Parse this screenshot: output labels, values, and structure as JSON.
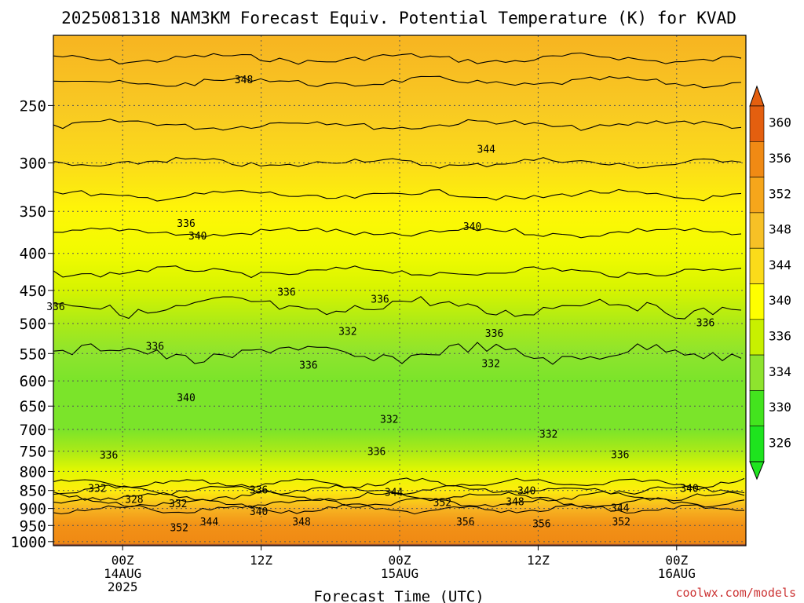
{
  "chart_data": {
    "type": "heatmap",
    "title": "2025081318 NAM3KM Forecast Equiv. Potential Temperature (K) for KVAD",
    "xlabel": "Forecast Time (UTC)",
    "ylabel": "",
    "x_ticks": [
      {
        "label": [
          "00Z",
          "14AUG",
          "2025"
        ],
        "hour": 6
      },
      {
        "label": [
          "12Z"
        ],
        "hour": 18
      },
      {
        "label": [
          "00Z",
          "15AUG"
        ],
        "hour": 30
      },
      {
        "label": [
          "12Z"
        ],
        "hour": 42
      },
      {
        "label": [
          "00Z",
          "16AUG"
        ],
        "hour": 54
      }
    ],
    "xlim_hours": [
      0,
      60
    ],
    "y_axis": {
      "type": "pressure",
      "ticks": [
        250,
        300,
        350,
        400,
        450,
        500,
        550,
        600,
        650,
        700,
        750,
        800,
        850,
        900,
        950,
        1000
      ],
      "top_hPa": 200,
      "bottom_hPa": 1013
    },
    "grid": true,
    "colorbar": {
      "labels": [
        360,
        356,
        352,
        348,
        344,
        340,
        336,
        334,
        330,
        326
      ],
      "colors": [
        "#e45f0f",
        "#f08a14",
        "#f6a61b",
        "#f7c126",
        "#fbdb1a",
        "#ffff00",
        "#c8f000",
        "#8ee42e",
        "#43e41e",
        "#1ee41e"
      ]
    },
    "profile_theta_e": [
      {
        "p": 200,
        "v": 350
      },
      {
        "p": 250,
        "v": 347
      },
      {
        "p": 300,
        "v": 344
      },
      {
        "p": 350,
        "v": 341
      },
      {
        "p": 400,
        "v": 339
      },
      {
        "p": 450,
        "v": 337
      },
      {
        "p": 500,
        "v": 335
      },
      {
        "p": 550,
        "v": 334
      },
      {
        "p": 600,
        "v": 333
      },
      {
        "p": 650,
        "v": 333
      },
      {
        "p": 700,
        "v": 333
      },
      {
        "p": 750,
        "v": 335
      },
      {
        "p": 800,
        "v": 338
      },
      {
        "p": 850,
        "v": 342
      },
      {
        "p": 900,
        "v": 350
      },
      {
        "p": 950,
        "v": 355
      },
      {
        "p": 1000,
        "v": 356
      }
    ],
    "contour_labels": [
      {
        "text": "348",
        "hour": 16.5,
        "p": 230
      },
      {
        "text": "344",
        "hour": 37.5,
        "p": 287
      },
      {
        "text": "340",
        "hour": 12.5,
        "p": 378
      },
      {
        "text": "340",
        "hour": 36.3,
        "p": 367
      },
      {
        "text": "336",
        "hour": 11.5,
        "p": 363
      },
      {
        "text": "336",
        "hour": 0.2,
        "p": 473
      },
      {
        "text": "336",
        "hour": 20.2,
        "p": 452
      },
      {
        "text": "336",
        "hour": 28.3,
        "p": 462
      },
      {
        "text": "336",
        "hour": 8.8,
        "p": 537
      },
      {
        "text": "336",
        "hour": 22.1,
        "p": 570
      },
      {
        "text": "336",
        "hour": 38.2,
        "p": 515
      },
      {
        "text": "336",
        "hour": 56.5,
        "p": 498
      },
      {
        "text": "332",
        "hour": 25.5,
        "p": 512
      },
      {
        "text": "332",
        "hour": 37.9,
        "p": 567
      },
      {
        "text": "332",
        "hour": 29.1,
        "p": 677
      },
      {
        "text": "332",
        "hour": 42.9,
        "p": 710
      },
      {
        "text": "336",
        "hour": 28.0,
        "p": 750
      },
      {
        "text": "336",
        "hour": 49.1,
        "p": 757
      },
      {
        "text": "336",
        "hour": 4.8,
        "p": 758
      },
      {
        "text": "340",
        "hour": 11.5,
        "p": 632
      },
      {
        "text": "332",
        "hour": 3.8,
        "p": 843
      },
      {
        "text": "328",
        "hour": 7.0,
        "p": 873
      },
      {
        "text": "332",
        "hour": 10.8,
        "p": 885
      },
      {
        "text": "336",
        "hour": 17.8,
        "p": 847
      },
      {
        "text": "340",
        "hour": 17.8,
        "p": 908
      },
      {
        "text": "344",
        "hour": 13.5,
        "p": 937
      },
      {
        "text": "348",
        "hour": 21.5,
        "p": 937
      },
      {
        "text": "352",
        "hour": 10.9,
        "p": 955
      },
      {
        "text": "344",
        "hour": 29.5,
        "p": 854
      },
      {
        "text": "352",
        "hour": 33.7,
        "p": 882
      },
      {
        "text": "356",
        "hour": 35.7,
        "p": 938
      },
      {
        "text": "340",
        "hour": 41.0,
        "p": 850
      },
      {
        "text": "348",
        "hour": 40.0,
        "p": 880
      },
      {
        "text": "356",
        "hour": 42.3,
        "p": 943
      },
      {
        "text": "352",
        "hour": 49.2,
        "p": 938
      },
      {
        "text": "344",
        "hour": 49.1,
        "p": 898
      },
      {
        "text": "340",
        "hour": 55.1,
        "p": 843
      }
    ],
    "credit": "coolwx.com/models"
  }
}
